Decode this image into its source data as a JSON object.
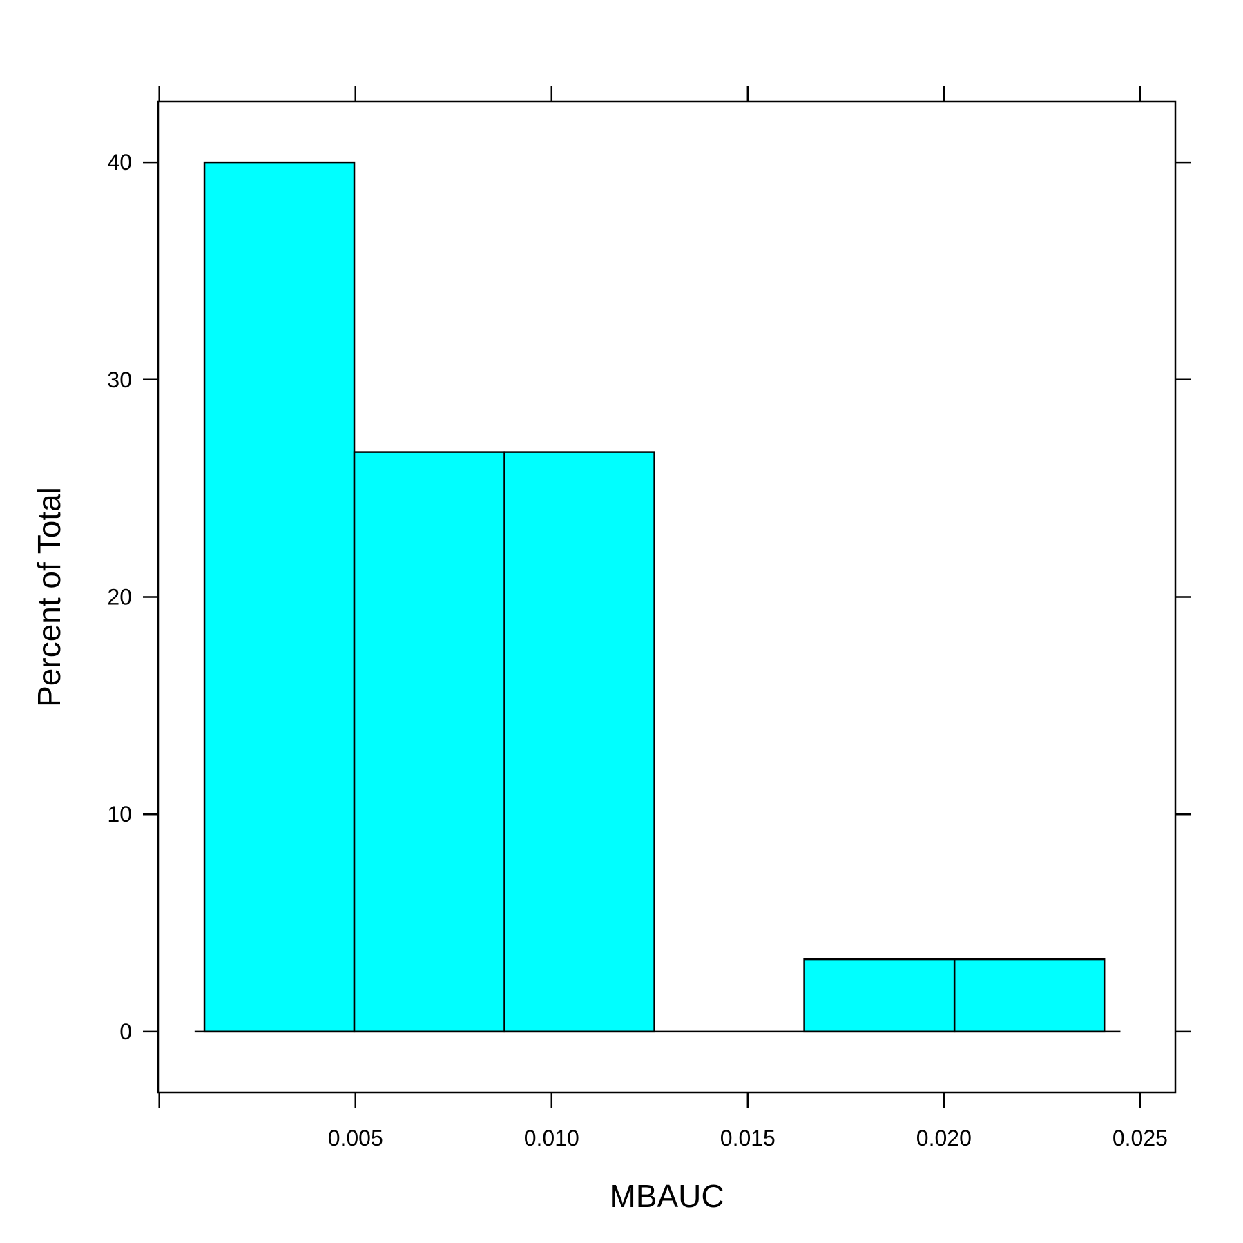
{
  "chart_data": {
    "type": "bar",
    "subtype": "histogram",
    "xlabel": "MBAUC",
    "ylabel": "Percent of Total",
    "xlim": [
      -3e-05,
      0.0259
    ],
    "ylim": [
      -2.8,
      42.8
    ],
    "x_ticks": [
      0.0,
      0.005,
      0.01,
      0.015,
      0.02,
      0.025
    ],
    "x_tick_labels": [
      "",
      "0.005",
      "0.010",
      "0.015",
      "0.020",
      "0.025"
    ],
    "y_ticks": [
      0,
      10,
      20,
      30,
      40
    ],
    "y_tick_labels": [
      "0",
      "10",
      "20",
      "30",
      "40"
    ],
    "baseline_range": [
      0.0009,
      0.0245
    ],
    "bins": [
      {
        "x0": 0.00115,
        "x1": 0.00497,
        "value": 40.0
      },
      {
        "x0": 0.00497,
        "x1": 0.0088,
        "value": 26.67
      },
      {
        "x0": 0.0088,
        "x1": 0.01262,
        "value": 26.67
      },
      {
        "x0": 0.01262,
        "x1": 0.01644,
        "value": 0.0
      },
      {
        "x0": 0.01644,
        "x1": 0.02027,
        "value": 3.33
      },
      {
        "x0": 0.02027,
        "x1": 0.02409,
        "value": 3.33
      }
    ],
    "bar_color": "#00FFFF",
    "grid": false,
    "legend": "none"
  }
}
